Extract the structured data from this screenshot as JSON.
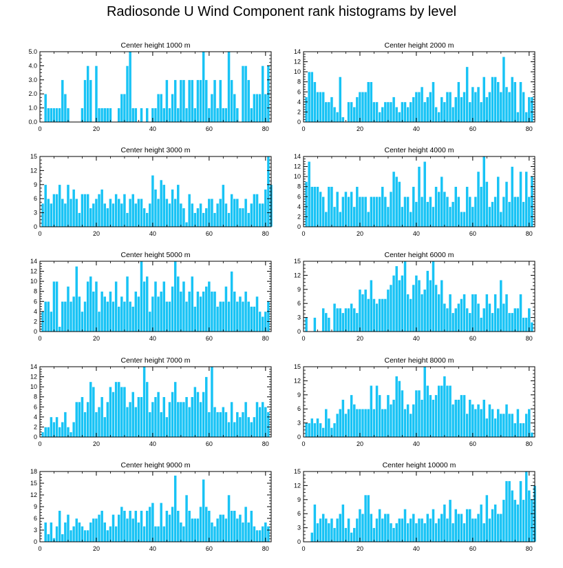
{
  "title": "Radiosonde U Wind Component rank histograms by level",
  "colors": {
    "bar": "#18c3f5",
    "bar_edge": "#ffffff",
    "axis": "#000000"
  },
  "chart_data": [
    {
      "type": "bar",
      "title": "Center height 1000 m",
      "ylim": [
        0,
        5
      ],
      "yticks": [
        0,
        1,
        2,
        3,
        4,
        5
      ],
      "ytick_labels": [
        "0.0",
        "1.0",
        "2.0",
        "3.0",
        "4.0",
        "5.0"
      ],
      "xlim": [
        0,
        82
      ],
      "xticks": [
        0,
        20,
        40,
        60,
        80
      ],
      "xtick_labels": [
        "0",
        "20",
        "40",
        "60",
        "80"
      ],
      "x_start": 1,
      "values": [
        0,
        2,
        1,
        1,
        1,
        1,
        1,
        3,
        2,
        1,
        0,
        0,
        0,
        0,
        1,
        3,
        4,
        3,
        0,
        4,
        1,
        1,
        1,
        1,
        1,
        0,
        0,
        1,
        2,
        2,
        4,
        5,
        1,
        1,
        0,
        1,
        0,
        1,
        0,
        1,
        1,
        2,
        2,
        1,
        3,
        1,
        2,
        3,
        1,
        3,
        3,
        1,
        3,
        3,
        1,
        3,
        3,
        5,
        3,
        1,
        2,
        3,
        1,
        3,
        1,
        1,
        5,
        3,
        2,
        1,
        0,
        4,
        4,
        3,
        1,
        2,
        2,
        2,
        4,
        2,
        4,
        0
      ]
    },
    {
      "type": "bar",
      "title": "Center height 2000 m",
      "ylim": [
        0,
        14
      ],
      "yticks": [
        0,
        2,
        4,
        6,
        8,
        10,
        12,
        14
      ],
      "ytick_labels": [
        "0",
        "2",
        "4",
        "6",
        "8",
        "10",
        "12",
        "14"
      ],
      "xlim": [
        0,
        82
      ],
      "xticks": [
        0,
        20,
        40,
        60,
        80
      ],
      "xtick_labels": [
        "0",
        "20",
        "40",
        "60",
        "80"
      ],
      "x_start": 1,
      "values": [
        5,
        10,
        10,
        8,
        6,
        6,
        6,
        4,
        4,
        5,
        3,
        2,
        9,
        1,
        0,
        4,
        4,
        3,
        5,
        6,
        6,
        6,
        8,
        8,
        4,
        4,
        2,
        3,
        4,
        4,
        4,
        5,
        3,
        2,
        4,
        4,
        3,
        4,
        5,
        6,
        6,
        7,
        4,
        5,
        6,
        8,
        3,
        2,
        5,
        4,
        6,
        6,
        3,
        5,
        8,
        5,
        6,
        11,
        4,
        7,
        6,
        7,
        4,
        9,
        5,
        6,
        9,
        9,
        8,
        6,
        13,
        7,
        6,
        9,
        8,
        2,
        8,
        6,
        2,
        5,
        5,
        0
      ]
    },
    {
      "type": "bar",
      "title": "Center height 3000 m",
      "ylim": [
        0,
        15
      ],
      "yticks": [
        0,
        3,
        6,
        9,
        12,
        15
      ],
      "ytick_labels": [
        "0",
        "3",
        "6",
        "9",
        "12",
        "15"
      ],
      "xlim": [
        0,
        82
      ],
      "xticks": [
        0,
        20,
        40,
        60,
        80
      ],
      "xtick_labels": [
        "0",
        "20",
        "40",
        "60",
        "80"
      ],
      "x_start": 1,
      "values": [
        5,
        9,
        6,
        5,
        7,
        7,
        9,
        6,
        5,
        9,
        6,
        8,
        6,
        3,
        7,
        7,
        7,
        4,
        5,
        6,
        7,
        8,
        5,
        4,
        6,
        5,
        7,
        6,
        5,
        7,
        3,
        6,
        7,
        5,
        6,
        6,
        4,
        3,
        5,
        11,
        8,
        6,
        10,
        9,
        6,
        5,
        8,
        6,
        9,
        5,
        4,
        1,
        7,
        5,
        3,
        4,
        5,
        3,
        4,
        6,
        6,
        3,
        5,
        6,
        9,
        5,
        3,
        7,
        6,
        6,
        4,
        4,
        6,
        3,
        5,
        7,
        7,
        5,
        5,
        8,
        15,
        9
      ]
    },
    {
      "type": "bar",
      "title": "Center height 4000 m",
      "ylim": [
        0,
        14
      ],
      "yticks": [
        0,
        2,
        4,
        6,
        8,
        10,
        12,
        14
      ],
      "ytick_labels": [
        "0",
        "2",
        "4",
        "6",
        "8",
        "10",
        "12",
        "14"
      ],
      "xlim": [
        0,
        82
      ],
      "xticks": [
        0,
        20,
        40,
        60,
        80
      ],
      "xtick_labels": [
        "0",
        "20",
        "40",
        "60",
        "80"
      ],
      "x_start": 1,
      "values": [
        9,
        13,
        8,
        8,
        8,
        7,
        6,
        3,
        8,
        8,
        4,
        7,
        3,
        6,
        7,
        6,
        7,
        4,
        8,
        6,
        6,
        6,
        3,
        6,
        6,
        6,
        6,
        8,
        6,
        4,
        7,
        11,
        10,
        9,
        4,
        6,
        6,
        3,
        8,
        5,
        12,
        6,
        13,
        5,
        6,
        4,
        8,
        7,
        10,
        7,
        6,
        4,
        5,
        8,
        6,
        3,
        3,
        8,
        6,
        4,
        6,
        11,
        8,
        14,
        9,
        4,
        5,
        6,
        10,
        3,
        6,
        9,
        5,
        12,
        6,
        6,
        11,
        5,
        11,
        6,
        10,
        0
      ]
    },
    {
      "type": "bar",
      "title": "Center height 5000 m",
      "ylim": [
        0,
        14
      ],
      "yticks": [
        0,
        2,
        4,
        6,
        8,
        10,
        12,
        14
      ],
      "ytick_labels": [
        "0",
        "2",
        "4",
        "6",
        "8",
        "10",
        "12",
        "14"
      ],
      "xlim": [
        0,
        82
      ],
      "xticks": [
        0,
        20,
        40,
        60,
        80
      ],
      "xtick_labels": [
        "0",
        "20",
        "40",
        "60",
        "80"
      ],
      "x_start": 1,
      "values": [
        4,
        6,
        6,
        4,
        10,
        10,
        1,
        6,
        6,
        9,
        6,
        7,
        13,
        7,
        4,
        6,
        10,
        11,
        8,
        10,
        4,
        8,
        7,
        6,
        8,
        6,
        10,
        5,
        7,
        6,
        11,
        6,
        5,
        8,
        7,
        14,
        10,
        11,
        4,
        7,
        10,
        7,
        8,
        10,
        6,
        6,
        9,
        14,
        11,
        8,
        10,
        6,
        8,
        11,
        5,
        8,
        7,
        8,
        9,
        10,
        8,
        8,
        5,
        6,
        6,
        9,
        6,
        12,
        8,
        6,
        7,
        6,
        8,
        6,
        5,
        5,
        7,
        4,
        3,
        4,
        6,
        0
      ]
    },
    {
      "type": "bar",
      "title": "Center height 6000 m",
      "ylim": [
        0,
        15
      ],
      "yticks": [
        0,
        3,
        6,
        9,
        12,
        15
      ],
      "ytick_labels": [
        "0",
        "3",
        "6",
        "9",
        "12",
        "15"
      ],
      "xlim": [
        0,
        82
      ],
      "xticks": [
        0,
        20,
        40,
        60,
        80
      ],
      "xtick_labels": [
        "0",
        "20",
        "40",
        "60",
        "80"
      ],
      "x_start": 1,
      "values": [
        3,
        0,
        0,
        3,
        0,
        0,
        5,
        4,
        3,
        0,
        6,
        5,
        5,
        4,
        5,
        5,
        6,
        5,
        4,
        9,
        8,
        9,
        7,
        11,
        7,
        6,
        7,
        7,
        7,
        9,
        10,
        12,
        14,
        11,
        12,
        15,
        8,
        7,
        10,
        12,
        11,
        8,
        9,
        13,
        11,
        15,
        10,
        8,
        11,
        6,
        5,
        8,
        4,
        5,
        6,
        7,
        8,
        5,
        4,
        8,
        8,
        6,
        3,
        5,
        8,
        6,
        4,
        8,
        5,
        11,
        6,
        8,
        4,
        4,
        5,
        5,
        8,
        3,
        3,
        5,
        2,
        0
      ]
    },
    {
      "type": "bar",
      "title": "Center height 7000 m",
      "ylim": [
        0,
        14
      ],
      "yticks": [
        0,
        2,
        4,
        6,
        8,
        10,
        12,
        14
      ],
      "ytick_labels": [
        "0",
        "2",
        "4",
        "6",
        "8",
        "10",
        "12",
        "14"
      ],
      "xlim": [
        0,
        82
      ],
      "xticks": [
        0,
        20,
        40,
        60,
        80
      ],
      "xtick_labels": [
        "0",
        "20",
        "40",
        "60",
        "80"
      ],
      "x_start": 1,
      "values": [
        1,
        2,
        2,
        4,
        3,
        4,
        2,
        3,
        5,
        2,
        1,
        3,
        7,
        7,
        8,
        5,
        7,
        11,
        10,
        5,
        6,
        8,
        4,
        7,
        10,
        9,
        11,
        11,
        10,
        10,
        6,
        7,
        9,
        6,
        8,
        8,
        14,
        11,
        5,
        7,
        8,
        9,
        5,
        8,
        4,
        7,
        9,
        11,
        7,
        7,
        7,
        8,
        6,
        8,
        10,
        9,
        7,
        9,
        12,
        5,
        14,
        6,
        5,
        5,
        6,
        5,
        3,
        7,
        3,
        5,
        4,
        5,
        7,
        4,
        3,
        4,
        7,
        6,
        7,
        6,
        5,
        0
      ]
    },
    {
      "type": "bar",
      "title": "Center height 8000 m",
      "ylim": [
        0,
        15
      ],
      "yticks": [
        0,
        3,
        6,
        9,
        12,
        15
      ],
      "ytick_labels": [
        "0",
        "3",
        "6",
        "9",
        "12",
        "15"
      ],
      "xlim": [
        0,
        82
      ],
      "xticks": [
        0,
        20,
        40,
        60,
        80
      ],
      "xtick_labels": [
        "0",
        "20",
        "40",
        "60",
        "80"
      ],
      "x_start": 1,
      "values": [
        3,
        3,
        4,
        3,
        4,
        3,
        2,
        6,
        4,
        2,
        3,
        5,
        6,
        8,
        5,
        6,
        9,
        7,
        6,
        6,
        6,
        6,
        6,
        11,
        6,
        11,
        9,
        6,
        6,
        9,
        7,
        8,
        13,
        12,
        10,
        6,
        7,
        5,
        7,
        10,
        10,
        8,
        15,
        11,
        9,
        8,
        9,
        11,
        11,
        13,
        11,
        11,
        7,
        8,
        8,
        9,
        9,
        5,
        8,
        7,
        6,
        7,
        6,
        8,
        4,
        7,
        6,
        4,
        6,
        5,
        5,
        7,
        5,
        5,
        3,
        6,
        3,
        3,
        5,
        6,
        1,
        0
      ]
    },
    {
      "type": "bar",
      "title": "Center height 9000 m",
      "ylim": [
        0,
        18
      ],
      "yticks": [
        0,
        3,
        6,
        9,
        12,
        15,
        18
      ],
      "ytick_labels": [
        "0",
        "3",
        "6",
        "9",
        "12",
        "15",
        "18"
      ],
      "xlim": [
        0,
        82
      ],
      "xticks": [
        0,
        20,
        40,
        60,
        80
      ],
      "xtick_labels": [
        "0",
        "20",
        "40",
        "60",
        "80"
      ],
      "x_start": 1,
      "values": [
        0,
        5,
        2,
        5,
        1,
        4,
        8,
        2,
        5,
        7,
        3,
        4,
        6,
        5,
        4,
        3,
        3,
        5,
        6,
        6,
        7,
        8,
        5,
        3,
        4,
        7,
        4,
        7,
        9,
        8,
        6,
        8,
        6,
        8,
        5,
        8,
        4,
        8,
        9,
        10,
        4,
        4,
        10,
        4,
        8,
        7,
        9,
        17,
        8,
        5,
        4,
        12,
        8,
        6,
        6,
        6,
        9,
        16,
        9,
        8,
        5,
        4,
        6,
        7,
        7,
        6,
        12,
        8,
        8,
        6,
        7,
        5,
        9,
        5,
        8,
        4,
        3,
        3,
        4,
        5,
        4,
        0
      ]
    },
    {
      "type": "bar",
      "title": "Center height 10000 m",
      "ylim": [
        0,
        15
      ],
      "yticks": [
        0,
        3,
        6,
        9,
        12,
        15
      ],
      "ytick_labels": [
        "0",
        "3",
        "6",
        "9",
        "12",
        "15"
      ],
      "xlim": [
        0,
        82
      ],
      "xticks": [
        0,
        20,
        40,
        60,
        80
      ],
      "xtick_labels": [
        "0",
        "20",
        "40",
        "60",
        "80"
      ],
      "x_start": 1,
      "values": [
        0,
        0,
        2,
        8,
        4,
        5,
        6,
        5,
        4,
        5,
        3,
        5,
        6,
        8,
        3,
        5,
        2,
        3,
        5,
        7,
        6,
        10,
        10,
        6,
        3,
        5,
        7,
        5,
        6,
        6,
        4,
        3,
        4,
        5,
        5,
        7,
        4,
        5,
        6,
        4,
        5,
        5,
        4,
        6,
        5,
        7,
        4,
        5,
        6,
        8,
        5,
        9,
        4,
        7,
        6,
        6,
        4,
        7,
        7,
        5,
        5,
        6,
        8,
        4,
        10,
        5,
        7,
        8,
        6,
        6,
        9,
        13,
        13,
        11,
        9,
        8,
        13,
        9,
        15,
        11,
        9,
        12
      ]
    }
  ]
}
